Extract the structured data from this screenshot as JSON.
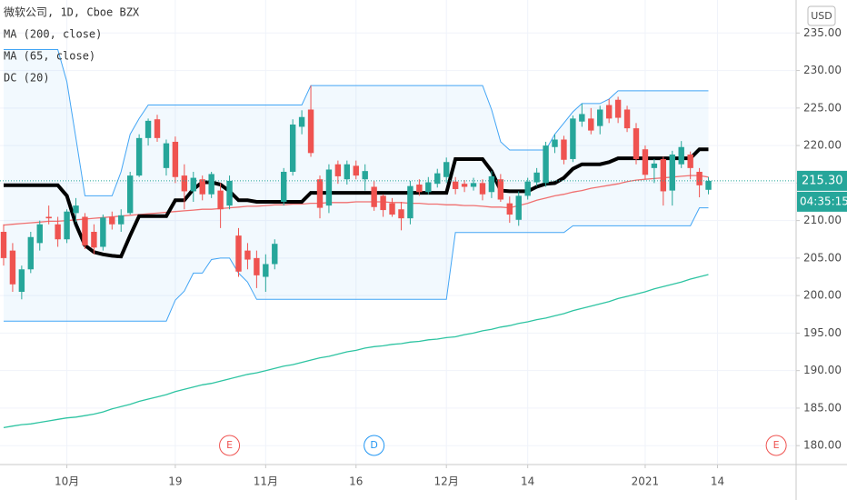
{
  "chart_data": {
    "type": "candlestick",
    "title": "微软公司, 1D, Cboe BZX",
    "currency": "USD",
    "countdown": "04:35:15",
    "last_price": {
      "value": 215.3,
      "label": "215.30"
    },
    "xlim": [
      -0.4,
      87.6
    ],
    "xticks": [
      {
        "value": 7,
        "label": "10月"
      },
      {
        "value": 19,
        "label": "19"
      },
      {
        "value": 29,
        "label": "11月"
      },
      {
        "value": 39,
        "label": "16"
      },
      {
        "value": 49,
        "label": "12月"
      },
      {
        "value": 58,
        "label": "14"
      },
      {
        "value": 71,
        "label": "2021"
      },
      {
        "value": 79,
        "label": "14"
      }
    ],
    "ylim": [
      177.6,
      239.4
    ],
    "yticks": [
      {
        "value": 180,
        "label": "180.00"
      },
      {
        "value": 185,
        "label": "185.00"
      },
      {
        "value": 190,
        "label": "190.00"
      },
      {
        "value": 195,
        "label": "195.00"
      },
      {
        "value": 200,
        "label": "200.00"
      },
      {
        "value": 205,
        "label": "205.00"
      },
      {
        "value": 210,
        "label": "210.00"
      },
      {
        "value": 215,
        "label": "215.00"
      },
      {
        "value": 220,
        "label": "220.00"
      },
      {
        "value": 225,
        "label": "225.00"
      },
      {
        "value": 230,
        "label": "230.00"
      },
      {
        "value": 235,
        "label": "235.00"
      }
    ],
    "grid": true,
    "up_color": "#26a69a",
    "down_color": "#ef5350",
    "open": [
      208.5,
      206,
      200.5,
      203.5,
      207,
      210.5,
      209.5,
      207.5,
      211,
      210.5,
      208.5,
      206.5,
      210.5,
      209.5,
      211,
      216,
      221,
      223.5,
      217,
      220.5,
      216,
      213.9,
      215.5,
      213.5,
      214,
      212,
      208,
      206,
      205,
      202.5,
      204.2,
      212.5,
      216.5,
      222.5,
      224.8,
      215.5,
      212,
      217.5,
      215.5,
      217.3,
      215.5,
      214.5,
      213.3,
      212.3,
      211.5,
      210.3,
      214.8,
      213.8,
      214.9,
      215.8,
      215.2,
      214.9,
      214.5,
      215,
      213.8,
      215.5,
      212.3,
      210.1,
      213.3,
      215.1,
      215,
      219.8,
      220.8,
      218.2,
      223.2,
      223.6,
      222.6,
      225.4,
      226.1,
      224.8,
      222.3,
      219.5,
      217,
      218.2,
      214,
      217.5,
      218.8,
      216.5,
      214.1
    ],
    "high": [
      209.5,
      207,
      204,
      208.5,
      210,
      212,
      210.5,
      211.5,
      213,
      211,
      209.5,
      210.8,
      211.2,
      211.5,
      216.5,
      221.5,
      223.6,
      224.1,
      220.8,
      221.2,
      217.5,
      216.5,
      216,
      216.5,
      215,
      216,
      209,
      207,
      206,
      205.5,
      207.5,
      217,
      223.5,
      224.7,
      228,
      216,
      217.5,
      218,
      218,
      218,
      217.5,
      215.3,
      213.5,
      213,
      212.5,
      215.3,
      215.5,
      215.8,
      216.9,
      218.4,
      215.8,
      215.4,
      215.7,
      215.5,
      216.6,
      216.2,
      213.2,
      213.9,
      215.7,
      217,
      220.5,
      221.5,
      221.3,
      224,
      225.6,
      225,
      225.3,
      226.2,
      226.5,
      225.3,
      223,
      220,
      218.2,
      218.5,
      219.3,
      220.6,
      219.2,
      217,
      215.8
    ],
    "low": [
      204,
      200.5,
      199.5,
      203,
      206,
      209.5,
      206.5,
      207,
      209.8,
      206.2,
      205.5,
      206,
      208.8,
      208.5,
      210.8,
      215.8,
      220,
      220.5,
      216,
      215,
      211.5,
      212.5,
      212.7,
      213,
      209,
      211.5,
      202.5,
      203.5,
      201,
      200.5,
      203.5,
      212,
      216,
      221.5,
      218.5,
      210.3,
      211,
      214.9,
      214.8,
      215.5,
      214,
      211.3,
      210.5,
      210.5,
      208.7,
      209.5,
      213.3,
      213.5,
      214.4,
      215,
      213.5,
      213.8,
      214,
      212.7,
      213,
      212.5,
      209.7,
      209.3,
      212.8,
      214.6,
      214.5,
      219,
      217.5,
      217.8,
      222.5,
      221.5,
      221.5,
      223,
      223,
      221.8,
      217.5,
      215.5,
      215,
      212,
      212,
      217,
      215.5,
      213.1,
      213.5
    ],
    "close": [
      205,
      201.5,
      203.5,
      207.8,
      209.5,
      210.3,
      207.5,
      211.2,
      212,
      206.7,
      206.4,
      210.4,
      209.5,
      210.7,
      216,
      221,
      223.3,
      221,
      220.3,
      215.8,
      213.9,
      215.7,
      213.5,
      216.2,
      211.5,
      215.3,
      203.2,
      204.8,
      202.7,
      204.2,
      206.9,
      216.5,
      222.8,
      223.8,
      219,
      211.7,
      216.8,
      215.9,
      217.5,
      216,
      216.6,
      211.8,
      211.4,
      210.8,
      210.3,
      214.6,
      213.8,
      215.1,
      216.3,
      217.8,
      214.2,
      214.5,
      215,
      213.5,
      215.9,
      212.8,
      210.8,
      213.3,
      215.2,
      216.4,
      220,
      220.8,
      218.1,
      223.6,
      224.2,
      222,
      224.8,
      223.6,
      223.7,
      222.3,
      218.2,
      216.1,
      217.6,
      213.9,
      218.8,
      219.8,
      217,
      214.7,
      215.3
    ],
    "series": [
      {
        "name": "MA (200, close)",
        "color": "#2ec4a2",
        "values": [
          182.4,
          182.6,
          182.8,
          182.9,
          183.1,
          183.3,
          183.5,
          183.7,
          183.8,
          184.0,
          184.2,
          184.5,
          184.9,
          185.2,
          185.5,
          185.9,
          186.2,
          186.5,
          186.8,
          187.2,
          187.5,
          187.8,
          188.1,
          188.3,
          188.6,
          188.9,
          189.2,
          189.5,
          189.7,
          190.0,
          190.3,
          190.6,
          190.8,
          191.1,
          191.4,
          191.7,
          191.9,
          192.2,
          192.5,
          192.7,
          193.0,
          193.2,
          193.3,
          193.5,
          193.6,
          193.8,
          193.9,
          194.1,
          194.2,
          194.4,
          194.5,
          194.8,
          195.0,
          195.3,
          195.5,
          195.8,
          196.0,
          196.3,
          196.5,
          196.8,
          197.0,
          197.3,
          197.6,
          198.0,
          198.3,
          198.6,
          198.9,
          199.2,
          199.6,
          199.9,
          200.2,
          200.5,
          200.9,
          201.2,
          201.5,
          201.8,
          202.2,
          202.5,
          202.8
        ]
      },
      {
        "name": "MA (65, close)",
        "color": "#f07070",
        "values": [
          209.4,
          209.5,
          209.6,
          209.7,
          209.8,
          209.9,
          209.9,
          210.0,
          210.1,
          210.2,
          210.3,
          210.4,
          210.5,
          210.6,
          210.7,
          210.8,
          210.9,
          211.0,
          211.1,
          211.2,
          211.3,
          211.4,
          211.5,
          211.5,
          211.6,
          211.7,
          211.8,
          211.9,
          211.9,
          212.0,
          212.1,
          212.1,
          212.2,
          212.2,
          212.3,
          212.3,
          212.4,
          212.4,
          212.4,
          212.5,
          212.5,
          212.5,
          212.5,
          212.4,
          212.4,
          212.3,
          212.3,
          212.2,
          212.2,
          212.1,
          212.1,
          212.0,
          212.0,
          211.9,
          211.8,
          211.8,
          211.7,
          212.0,
          212.3,
          212.7,
          213.0,
          213.3,
          213.5,
          213.8,
          214.0,
          214.3,
          214.5,
          214.7,
          214.9,
          215.2,
          215.4,
          215.5,
          215.6,
          215.7,
          215.8,
          215.9,
          216.0,
          216.0,
          215.8
        ]
      },
      {
        "name": "DC (20)",
        "color": "#42a5f5",
        "basis_color": "#000000",
        "upper": [
          232.8,
          232.8,
          232.8,
          232.8,
          232.8,
          232.8,
          232.8,
          228.5,
          221.0,
          213.3,
          213.3,
          213.3,
          213.3,
          216.5,
          221.5,
          223.6,
          225.4,
          225.4,
          225.4,
          225.4,
          225.4,
          225.4,
          225.4,
          225.4,
          225.4,
          225.4,
          225.4,
          225.4,
          225.4,
          225.4,
          225.4,
          225.4,
          225.4,
          225.4,
          228.0,
          228.0,
          228.0,
          228.0,
          228.0,
          228.0,
          228.0,
          228.0,
          228.0,
          228.0,
          228.0,
          228.0,
          228.0,
          228.0,
          228.0,
          228.0,
          228.0,
          228.0,
          228.0,
          228.0,
          224.8,
          220.5,
          219.4,
          219.4,
          219.4,
          219.4,
          219.4,
          221.5,
          223.0,
          224.5,
          225.6,
          225.6,
          225.6,
          226.2,
          227.3,
          227.3,
          227.3,
          227.3,
          227.3,
          227.3,
          227.3,
          227.3,
          227.3,
          227.3,
          227.3
        ],
        "lower": [
          196.6,
          196.6,
          196.6,
          196.6,
          196.6,
          196.6,
          196.6,
          196.6,
          196.6,
          196.6,
          196.6,
          196.6,
          196.6,
          196.6,
          196.6,
          196.6,
          196.6,
          196.6,
          196.6,
          199.4,
          200.6,
          203.0,
          203.0,
          204.8,
          205.0,
          205.0,
          203.0,
          201.8,
          199.5,
          199.5,
          199.5,
          199.5,
          199.5,
          199.5,
          199.5,
          199.5,
          199.5,
          199.5,
          199.5,
          199.5,
          199.5,
          199.5,
          199.5,
          199.5,
          199.5,
          199.5,
          199.5,
          199.5,
          199.5,
          199.5,
          208.4,
          208.4,
          208.4,
          208.4,
          208.4,
          208.4,
          208.4,
          208.4,
          208.4,
          208.4,
          208.4,
          208.4,
          208.4,
          209.3,
          209.3,
          209.3,
          209.3,
          209.3,
          209.3,
          209.3,
          209.3,
          209.3,
          209.3,
          209.3,
          209.3,
          209.3,
          209.3,
          211.7,
          211.7
        ],
        "basis": [
          214.7,
          214.7,
          214.7,
          214.7,
          214.7,
          214.7,
          214.7,
          213.3,
          209.5,
          206.7,
          205.8,
          205.5,
          205.3,
          205.2,
          208.0,
          210.6,
          210.6,
          210.6,
          210.6,
          212.7,
          212.7,
          214.2,
          215.1,
          215.1,
          214.8,
          213.9,
          212.7,
          212.7,
          212.5,
          212.5,
          212.5,
          212.5,
          212.5,
          212.5,
          213.7,
          213.7,
          213.7,
          213.7,
          213.7,
          213.7,
          213.7,
          213.7,
          213.7,
          213.7,
          213.7,
          213.7,
          213.7,
          213.7,
          213.7,
          213.7,
          218.2,
          218.2,
          218.2,
          218.2,
          216.6,
          214.0,
          213.9,
          213.9,
          213.9,
          214.5,
          214.9,
          215.0,
          215.7,
          216.9,
          217.5,
          217.5,
          217.5,
          217.8,
          218.3,
          218.3,
          218.3,
          218.3,
          218.3,
          218.3,
          218.3,
          218.3,
          218.3,
          219.5,
          219.5
        ]
      }
    ],
    "events": [
      {
        "label": "E",
        "x": 25,
        "color": "#ef5350"
      },
      {
        "label": "D",
        "x": 41,
        "color": "#2196f3"
      },
      {
        "label": "E",
        "x": 85.5,
        "color": "#ef5350"
      }
    ]
  }
}
